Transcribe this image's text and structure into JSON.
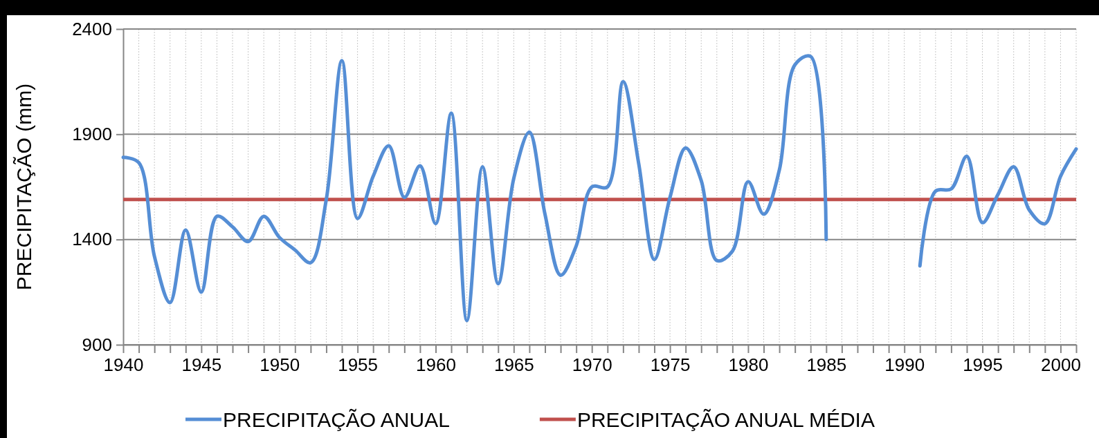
{
  "chart_data": {
    "type": "line",
    "ylabel": "PRECIPITAÇÃO (mm)",
    "x": [
      1940,
      1941,
      1942,
      1943,
      1944,
      1945,
      1946,
      1947,
      1948,
      1949,
      1950,
      1951,
      1952,
      1953,
      1954,
      1955,
      1956,
      1957,
      1958,
      1959,
      1960,
      1961,
      1962,
      1963,
      1964,
      1965,
      1966,
      1967,
      1968,
      1969,
      1970,
      1971,
      1972,
      1973,
      1974,
      1975,
      1976,
      1977,
      1978,
      1979,
      1980,
      1981,
      1982,
      1983,
      1984,
      1985,
      1986,
      1987,
      1988,
      1989,
      1990,
      1991,
      1992,
      1993,
      1994,
      1995,
      1996,
      1997,
      1998,
      1999,
      2000,
      2001
    ],
    "series": [
      {
        "name": "PRECIPITAÇÃO ANUAL",
        "color": "#558ed5",
        "values": [
          1790,
          1765,
          1320,
          1100,
          1445,
          1150,
          1510,
          1460,
          1390,
          1510,
          1410,
          1350,
          1290,
          1590,
          2250,
          1500,
          1700,
          1845,
          1600,
          1750,
          1475,
          2000,
          1015,
          1745,
          1190,
          1690,
          1910,
          1520,
          1230,
          1370,
          1650,
          1650,
          2150,
          1760,
          1305,
          1600,
          1835,
          1680,
          1300,
          1345,
          1675,
          1520,
          1730,
          2230,
          2270,
          1400,
          null,
          null,
          null,
          null,
          null,
          1275,
          1630,
          1640,
          1795,
          1480,
          1615,
          1745,
          1540,
          1475,
          1700,
          1830
        ]
      }
    ],
    "ref_lines": [
      {
        "axis": "y",
        "value": 1590,
        "label": "PRECIPITAÇÃO ANUAL MÉDIA",
        "color": "#c0504d"
      }
    ],
    "xlim": [
      1940,
      2001
    ],
    "xticks": [
      1940,
      {
        "value": 1941,
        "label": null
      },
      {
        "value": 1942,
        "label": null
      },
      {
        "value": 1943,
        "label": null
      },
      {
        "value": 1944,
        "label": null
      },
      1945,
      {
        "value": 1946,
        "label": null
      },
      {
        "value": 1947,
        "label": null
      },
      {
        "value": 1948,
        "label": null
      },
      {
        "value": 1949,
        "label": null
      },
      1950,
      {
        "value": 1951,
        "label": null
      },
      {
        "value": 1952,
        "label": null
      },
      {
        "value": 1953,
        "label": null
      },
      {
        "value": 1954,
        "label": null
      },
      1955,
      {
        "value": 1956,
        "label": null
      },
      {
        "value": 1957,
        "label": null
      },
      {
        "value": 1958,
        "label": null
      },
      {
        "value": 1959,
        "label": null
      },
      1960,
      {
        "value": 1961,
        "label": null
      },
      {
        "value": 1962,
        "label": null
      },
      {
        "value": 1963,
        "label": null
      },
      {
        "value": 1964,
        "label": null
      },
      1965,
      {
        "value": 1966,
        "label": null
      },
      {
        "value": 1967,
        "label": null
      },
      {
        "value": 1968,
        "label": null
      },
      {
        "value": 1969,
        "label": null
      },
      1970,
      {
        "value": 1971,
        "label": null
      },
      {
        "value": 1972,
        "label": null
      },
      {
        "value": 1973,
        "label": null
      },
      {
        "value": 1974,
        "label": null
      },
      1975,
      {
        "value": 1976,
        "label": null
      },
      {
        "value": 1977,
        "label": null
      },
      {
        "value": 1978,
        "label": null
      },
      {
        "value": 1979,
        "label": null
      },
      1980,
      {
        "value": 1981,
        "label": null
      },
      {
        "value": 1982,
        "label": null
      },
      {
        "value": 1983,
        "label": null
      },
      {
        "value": 1984,
        "label": null
      },
      1985,
      {
        "value": 1986,
        "label": null
      },
      {
        "value": 1987,
        "label": null
      },
      {
        "value": 1988,
        "label": null
      },
      {
        "value": 1989,
        "label": null
      },
      1990,
      {
        "value": 1991,
        "label": null
      },
      {
        "value": 1992,
        "label": null
      },
      {
        "value": 1993,
        "label": null
      },
      {
        "value": 1994,
        "label": null
      },
      1995,
      {
        "value": 1996,
        "label": null
      },
      {
        "value": 1997,
        "label": null
      },
      {
        "value": 1998,
        "label": null
      },
      {
        "value": 1999,
        "label": null
      },
      2000,
      {
        "value": 2001,
        "label": null
      }
    ],
    "ylim": [
      900,
      2400
    ],
    "yticks": [
      900,
      1400,
      1900,
      2400
    ],
    "grid": true,
    "legend": "bottom",
    "line_style": "solid",
    "marker": "none"
  }
}
